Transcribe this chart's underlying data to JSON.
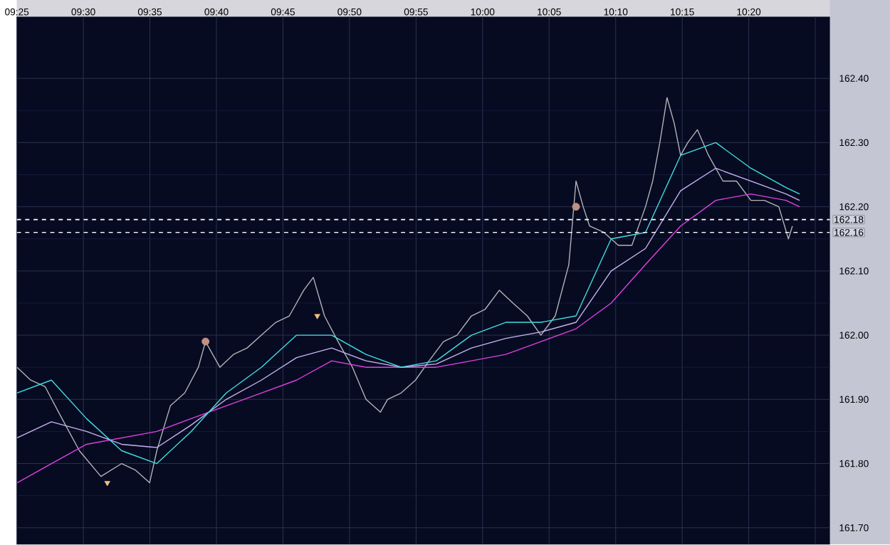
{
  "chart_data": {
    "type": "line",
    "xlim": [
      9.4167,
      10.435
    ],
    "ylim": [
      161.674,
      162.496
    ],
    "xticks": [
      {
        "value": 9.4167,
        "label": "09:25"
      },
      {
        "value": 9.5,
        "label": "09:30"
      },
      {
        "value": 9.5833,
        "label": "09:35"
      },
      {
        "value": 9.6667,
        "label": "09:40"
      },
      {
        "value": 9.75,
        "label": "09:45"
      },
      {
        "value": 9.8333,
        "label": "09:50"
      },
      {
        "value": 9.9167,
        "label": "09:55"
      },
      {
        "value": 10.0,
        "label": "10:00"
      },
      {
        "value": 10.0833,
        "label": "10:05"
      },
      {
        "value": 10.1667,
        "label": "10:10"
      },
      {
        "value": 10.25,
        "label": "10:15"
      },
      {
        "value": 10.3333,
        "label": "10:20"
      },
      {
        "value": 10.4167,
        "label": null
      }
    ],
    "yticks": [
      {
        "value": 161.7,
        "label": "161.70"
      },
      {
        "value": 161.8,
        "label": "161.80"
      },
      {
        "value": 161.9,
        "label": "161.90"
      },
      {
        "value": 162.0,
        "label": "162.00"
      },
      {
        "value": 162.1,
        "label": "162.10"
      },
      {
        "value": 162.2,
        "label": "162.20"
      },
      {
        "value": 162.3,
        "label": "162.30"
      },
      {
        "value": 162.4,
        "label": "162.40"
      }
    ],
    "grid": true,
    "ref_lines": [
      {
        "axis": "y",
        "value": 162.18,
        "label": "162.18",
        "color": "#ffffff",
        "line_style": "dashed"
      },
      {
        "axis": "y",
        "value": 162.16,
        "label": "162.16",
        "color": "#ffffff",
        "line_style": "dashed"
      }
    ],
    "series": [
      {
        "color": "#b4b4b8",
        "x": [
          9.417,
          9.434,
          9.452,
          9.469,
          9.495,
          9.522,
          9.548,
          9.565,
          9.583,
          9.592,
          9.609,
          9.627,
          9.644,
          9.653,
          9.671,
          9.688,
          9.705,
          9.723,
          9.741,
          9.758,
          9.776,
          9.788,
          9.802,
          9.819,
          9.837,
          9.854,
          9.872,
          9.881,
          9.898,
          9.916,
          9.933,
          9.951,
          9.968,
          9.986,
          10.003,
          10.021,
          10.038,
          10.056,
          10.073,
          10.091,
          10.108,
          10.117,
          10.126,
          10.134,
          10.152,
          10.17,
          10.187,
          10.204,
          10.213,
          10.222,
          10.231,
          10.24,
          10.248,
          10.257,
          10.269,
          10.283,
          10.301,
          10.318,
          10.336,
          10.353,
          10.371,
          10.383,
          10.388
        ],
        "values": [
          161.95,
          161.93,
          161.92,
          161.88,
          161.82,
          161.78,
          161.8,
          161.79,
          161.77,
          161.82,
          161.89,
          161.91,
          161.95,
          161.99,
          161.95,
          161.97,
          161.98,
          162.0,
          162.02,
          162.03,
          162.07,
          162.09,
          162.03,
          161.99,
          161.95,
          161.9,
          161.88,
          161.9,
          161.91,
          161.93,
          161.96,
          161.99,
          162.0,
          162.03,
          162.04,
          162.07,
          162.05,
          162.03,
          162.0,
          162.03,
          162.11,
          162.24,
          162.2,
          162.17,
          162.16,
          162.14,
          162.14,
          162.2,
          162.24,
          162.3,
          162.37,
          162.33,
          162.28,
          162.3,
          162.32,
          162.28,
          162.24,
          162.24,
          162.21,
          162.21,
          162.2,
          162.15,
          162.17
        ]
      },
      {
        "color": "#e040e0",
        "x": [
          9.417,
          9.46,
          9.504,
          9.548,
          9.592,
          9.635,
          9.679,
          9.723,
          9.767,
          9.811,
          9.854,
          9.898,
          9.942,
          9.986,
          10.029,
          10.073,
          10.117,
          10.161,
          10.204,
          10.248,
          10.292,
          10.336,
          10.38,
          10.397
        ],
        "values": [
          161.77,
          161.8,
          161.83,
          161.84,
          161.85,
          161.87,
          161.89,
          161.91,
          161.93,
          161.96,
          161.95,
          161.95,
          161.95,
          161.96,
          161.97,
          161.99,
          162.01,
          162.05,
          162.11,
          162.17,
          162.21,
          162.22,
          162.21,
          162.2
        ]
      },
      {
        "color": "#c8b4f0",
        "x": [
          9.417,
          9.46,
          9.504,
          9.548,
          9.592,
          9.635,
          9.679,
          9.723,
          9.767,
          9.811,
          9.854,
          9.898,
          9.942,
          9.986,
          10.029,
          10.073,
          10.117,
          10.161,
          10.204,
          10.248,
          10.292,
          10.336,
          10.38,
          10.397
        ],
        "values": [
          161.84,
          161.865,
          161.85,
          161.83,
          161.825,
          161.86,
          161.9,
          161.93,
          161.965,
          161.98,
          161.96,
          161.95,
          161.955,
          161.98,
          161.995,
          162.005,
          162.02,
          162.1,
          162.135,
          162.225,
          162.26,
          162.24,
          162.22,
          162.21
        ]
      },
      {
        "color": "#40e0e0",
        "x": [
          9.417,
          9.46,
          9.504,
          9.548,
          9.592,
          9.635,
          9.679,
          9.723,
          9.767,
          9.811,
          9.854,
          9.898,
          9.942,
          9.986,
          10.029,
          10.073,
          10.117,
          10.161,
          10.204,
          10.248,
          10.292,
          10.336,
          10.38,
          10.397
        ],
        "values": [
          161.91,
          161.93,
          161.87,
          161.82,
          161.8,
          161.85,
          161.91,
          161.95,
          162.0,
          162.0,
          161.97,
          161.95,
          161.96,
          162.0,
          162.02,
          162.02,
          162.03,
          162.15,
          162.16,
          162.28,
          162.3,
          162.26,
          162.23,
          162.22
        ]
      },
      {
        "type": "scatter",
        "marker": "triangle",
        "color": "#f0c080",
        "x": [
          9.53,
          9.793
        ],
        "values": [
          161.77,
          162.03
        ]
      },
      {
        "type": "scatter",
        "marker": "circle",
        "color": "#c09080",
        "x": [
          9.653,
          10.117
        ],
        "values": [
          161.99,
          162.2
        ]
      }
    ]
  }
}
